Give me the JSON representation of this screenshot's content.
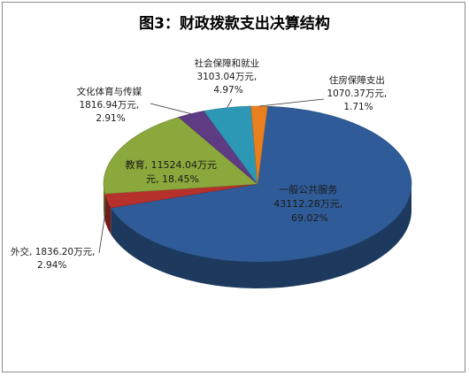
{
  "chart_data": {
    "type": "pie",
    "title": "图3：财政拨款支出决算结构",
    "slices": [
      {
        "name": "一般公共服务",
        "amount": "43112.28万元",
        "percent": 69.02,
        "percent_label": "69.02%",
        "color": "#2f5c98"
      },
      {
        "name": "外交",
        "amount": "1836.20万元",
        "percent": 2.94,
        "percent_label": "2.94%",
        "color": "#b7312c"
      },
      {
        "name": "教育",
        "amount": "11524.04万元",
        "percent": 18.45,
        "percent_label": "18.45%",
        "color": "#8aa83b"
      },
      {
        "name": "文化体育与传媒",
        "amount": "1816.94万元",
        "percent": 2.91,
        "percent_label": "2.91%",
        "color": "#5f3b84"
      },
      {
        "name": "社会保障和就业",
        "amount": "3103.04万元",
        "percent": 4.97,
        "percent_label": "4.97%",
        "color": "#2d98b6"
      },
      {
        "name": "住房保障支出",
        "amount": "1070.37万元",
        "percent": 1.71,
        "percent_label": "1.71%",
        "color": "#e9801f"
      }
    ]
  }
}
